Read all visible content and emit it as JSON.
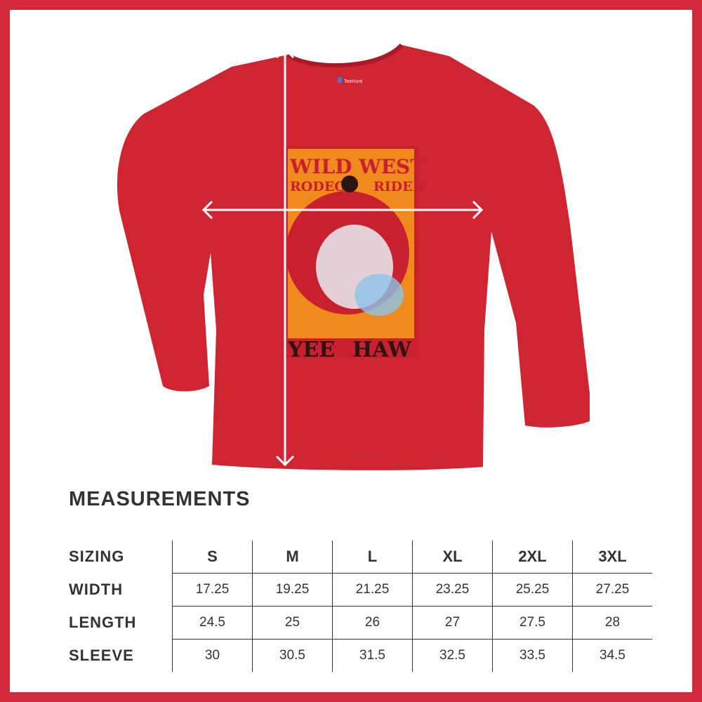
{
  "colors": {
    "border": "#d32a3d",
    "shirt": "#cf2431",
    "poster_orange": "#f08a1c",
    "text": "#333333"
  },
  "product": {
    "label_brand": "TeeHunt",
    "graphic": {
      "line1": "WILD WEST",
      "line2_left": "RODEO",
      "line2_right": "RIDER",
      "bottom_left": "YEE",
      "bottom_right": "HAW"
    }
  },
  "measurements": {
    "title": "MEASUREMENTS",
    "header": {
      "label": "SIZING",
      "sizes": [
        "S",
        "M",
        "L",
        "XL",
        "2XL",
        "3XL"
      ]
    },
    "rows": [
      {
        "label": "WIDTH",
        "values": [
          "17.25",
          "19.25",
          "21.25",
          "23.25",
          "25.25",
          "27.25"
        ]
      },
      {
        "label": "LENGTH",
        "values": [
          "24.5",
          "25",
          "26",
          "27",
          "27.5",
          "28"
        ]
      },
      {
        "label": "SLEEVE",
        "values": [
          "30",
          "30.5",
          "31.5",
          "32.5",
          "33.5",
          "34.5"
        ]
      }
    ]
  }
}
